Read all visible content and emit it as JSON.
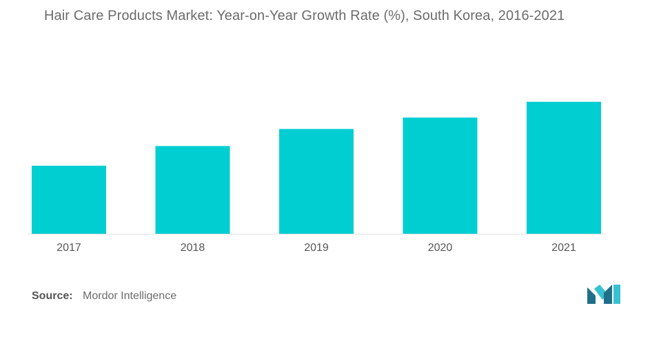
{
  "chart_data": {
    "type": "bar",
    "title": "Hair Care Products Market: Year-on-Year Growth Rate (%), South Korea, 2016-2021",
    "categories": [
      "2017",
      "2018",
      "2019",
      "2020",
      "2021"
    ],
    "values": [
      2.08,
      2.68,
      3.2,
      3.55,
      4.03
    ],
    "xlabel": "",
    "ylabel": "",
    "ylim": [
      0,
      4.2
    ],
    "grid": false,
    "legend": "none",
    "colors": {
      "bar": "#00CED1",
      "axis_text": "#555555",
      "baseline": "#e0e0e0"
    }
  },
  "source": {
    "label": "Source:",
    "text": "Mordor Intelligence"
  },
  "logo": {
    "icon": "mordor-intelligence-logo-icon",
    "colors": [
      "#1f6f8b",
      "#38c1d1"
    ]
  }
}
